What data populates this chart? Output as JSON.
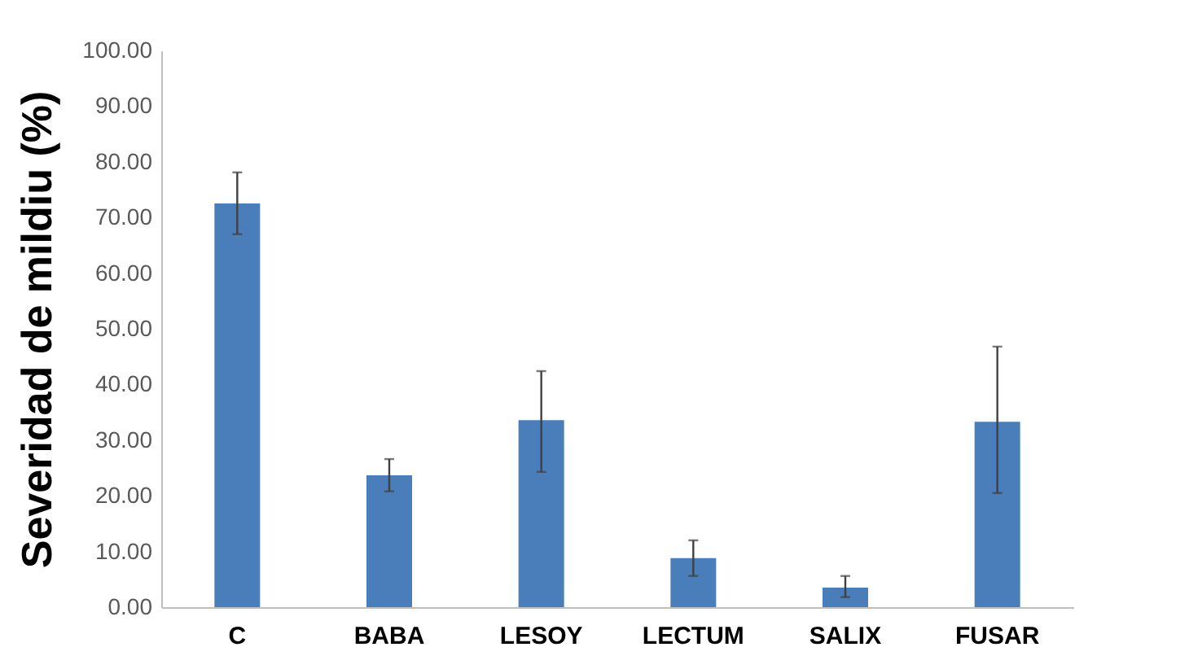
{
  "chart_data": {
    "type": "bar",
    "ylabel": "Severidad de mildiu (%)",
    "categories": [
      "C",
      "BABA",
      "LESOY",
      "LECTUM",
      "SALIX",
      "FUSAR"
    ],
    "values": [
      72.5,
      23.7,
      33.6,
      8.8,
      3.5,
      33.3
    ],
    "errors": [
      [
        67.0,
        78.1
      ],
      [
        20.8,
        26.6
      ],
      [
        24.3,
        42.4
      ],
      [
        5.6,
        12.0
      ],
      [
        1.8,
        5.6
      ],
      [
        20.5,
        46.8
      ]
    ],
    "color": "#4a7ebb",
    "ylim": [
      0,
      100
    ],
    "yticks": [
      {
        "value": 0,
        "label": "0.00"
      },
      {
        "value": 10,
        "label": "10.00"
      },
      {
        "value": 20,
        "label": "20.00"
      },
      {
        "value": 30,
        "label": "30.00"
      },
      {
        "value": 40,
        "label": "40.00"
      },
      {
        "value": 50,
        "label": "50.00"
      },
      {
        "value": 60,
        "label": "60.00"
      },
      {
        "value": 70,
        "label": "70.00"
      },
      {
        "value": 80,
        "label": "80.00"
      },
      {
        "value": 90,
        "label": "90.00"
      },
      {
        "value": 100,
        "label": "100.00"
      }
    ],
    "grid": false
  }
}
